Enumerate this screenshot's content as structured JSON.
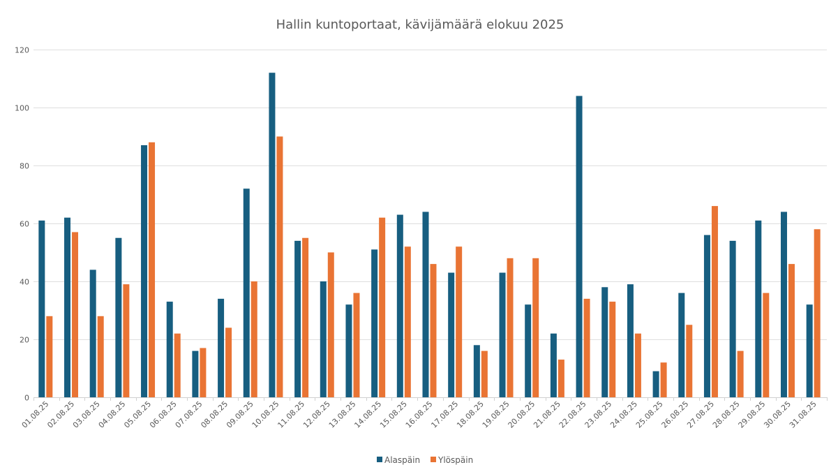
{
  "chart_data": {
    "type": "bar",
    "title": "Hallin kuntoportaat, kävijämäärä elokuu 2025",
    "xlabel": "",
    "ylabel": "",
    "ylim": [
      0,
      120
    ],
    "yticks": [
      "0",
      "20",
      "40",
      "60",
      "80",
      "100",
      "120"
    ],
    "grid": true,
    "legend_position": "bottom",
    "categories": [
      "01.08.25",
      "02.08.25",
      "03.08.25",
      "04.08.25",
      "05.08.25",
      "06.08.25",
      "07.08.25",
      "08.08.25",
      "09.08.25",
      "10.08.25",
      "11.08.25",
      "12.08.25",
      "13.08.25",
      "14.08.25",
      "15.08.25",
      "16.08.25",
      "17.08.25",
      "18.08.25",
      "19.08.25",
      "20.08.25",
      "21.08.25",
      "22.08.25",
      "23.08.25",
      "24.08.25",
      "25.08.25",
      "26.08.25",
      "27.08.25",
      "28.08.25",
      "29.08.25",
      "30.08.25",
      "31.08.25"
    ],
    "series": [
      {
        "name": "Alaspäin",
        "color": "#175e80",
        "values": [
          61,
          62,
          44,
          55,
          87,
          33,
          16,
          34,
          72,
          112,
          54,
          40,
          32,
          51,
          63,
          64,
          43,
          18,
          43,
          32,
          22,
          104,
          38,
          39,
          9,
          36,
          56,
          54,
          61,
          64,
          32
        ]
      },
      {
        "name": "Ylöspäin",
        "color": "#e97434",
        "values": [
          28,
          57,
          28,
          39,
          88,
          22,
          17,
          24,
          40,
          90,
          55,
          50,
          36,
          62,
          52,
          46,
          52,
          16,
          48,
          48,
          13,
          34,
          33,
          22,
          12,
          25,
          66,
          16,
          36,
          46,
          58
        ]
      }
    ]
  }
}
